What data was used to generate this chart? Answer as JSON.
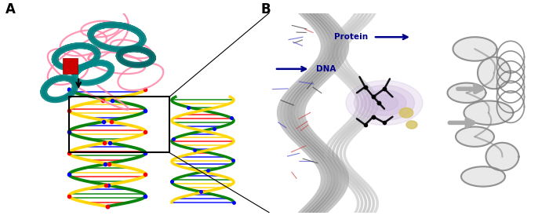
{
  "fig_width": 7.0,
  "fig_height": 2.79,
  "dpi": 100,
  "label_A": "A",
  "label_B": "B",
  "label_fontsize": 12,
  "label_fontweight": "bold",
  "panel_A_bg": "#ffffff",
  "panel_B_bg": "#f2d8e4",
  "annotation_color": "#00008b",
  "annotation_fontsize": 7.5,
  "annotation_fontweight": "bold",
  "box_color": "#000000",
  "connector_color": "#000000"
}
